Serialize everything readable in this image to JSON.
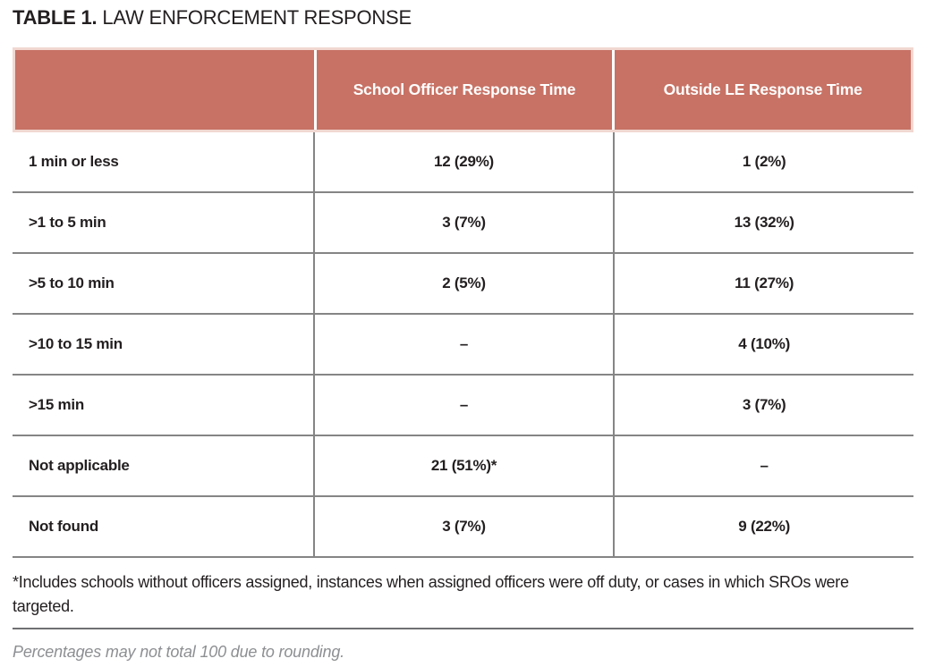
{
  "title": {
    "prefix": "TABLE 1.",
    "text": "LAW ENFORCEMENT RESPONSE"
  },
  "table": {
    "columns": [
      "",
      "School Officer Response Time",
      "Outside LE Response Time"
    ],
    "rows": [
      {
        "label": "1 min or less",
        "school_officer": "12 (29%)",
        "outside_le": "1 (2%)"
      },
      {
        "label": ">1 to 5 min",
        "school_officer": "3 (7%)",
        "outside_le": "13 (32%)"
      },
      {
        "label": ">5 to 10 min",
        "school_officer": "2 (5%)",
        "outside_le": "11 (27%)"
      },
      {
        "label": ">10 to 15 min",
        "school_officer": "–",
        "outside_le": "4 (10%)"
      },
      {
        "label": ">15 min",
        "school_officer": "–",
        "outside_le": "3 (7%)"
      },
      {
        "label": "Not applicable",
        "school_officer": "21 (51%)*",
        "outside_le": "–"
      },
      {
        "label": "Not found",
        "school_officer": "3 (7%)",
        "outside_le": "9 (22%)"
      }
    ]
  },
  "footnote": "*Includes schools without officers assigned, instances when assigned officers were off duty, or cases in which SROs were targeted.",
  "note": "Percentages may not total 100 due to rounding.",
  "colors": {
    "header_bg": "#c77265",
    "header_border": "#f1d8d1",
    "header_text": "#ffffff",
    "body_text": "#231f20",
    "grid_line": "#858585",
    "note_text": "#8d8f92"
  }
}
